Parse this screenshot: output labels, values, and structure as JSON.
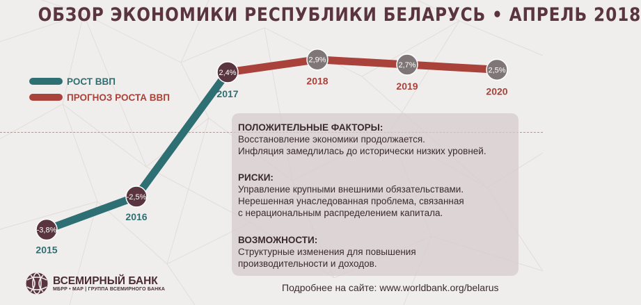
{
  "header": {
    "title": "ОБЗОР ЭКОНОМИКИ РЕСПУБЛИКИ БЕЛАРУСЬ • АПРЕЛЬ 2018"
  },
  "colors": {
    "actual": "#2e6f73",
    "forecast": "#a8423b",
    "point_fill": "#5a3540",
    "forecast_point_fill": "#7f7677",
    "title": "#5a3540"
  },
  "legend": {
    "items": [
      {
        "label": "РОСТ ВВП",
        "color": "#2e6f73"
      },
      {
        "label": "ПРОГНОЗ РОСТА ВВП",
        "color": "#a8423b"
      }
    ]
  },
  "chart_data": {
    "type": "line",
    "x": [
      "2015",
      "2016",
      "2017",
      "2018",
      "2019",
      "2020"
    ],
    "series": [
      {
        "name": "РОСТ ВВП",
        "values": [
          -3.8,
          -2.5,
          2.4,
          null,
          null,
          null
        ]
      },
      {
        "name": "ПРОГНОЗ РОСТА ВВП",
        "values": [
          null,
          null,
          2.4,
          2.9,
          2.7,
          2.5
        ]
      }
    ],
    "data_labels": [
      "-3,8%",
      "-2,5%",
      "2,4%",
      "2,9%",
      "2,7%",
      "2,5%"
    ],
    "legend_position": "top-left",
    "grid": false
  },
  "info": {
    "positive": {
      "heading": "ПОЛОЖИТЕЛЬНЫЕ ФАКТОРЫ:",
      "lines": [
        "Восстановление экономики продолжается.",
        "Инфляция замедлилась до исторически низких уровней."
      ]
    },
    "risks": {
      "heading": "РИСКИ:",
      "lines": [
        "Управление крупными внешними обязательствами.",
        "Нерешенная унаследованная проблема, связанная",
        "с нерациональным распределением капитала."
      ]
    },
    "opportunities": {
      "heading": "ВОЗМОЖНОСТИ:",
      "lines": [
        "Структурные изменения для повышения",
        "производительности и доходов."
      ]
    }
  },
  "footer": {
    "logo_main": "ВСЕМИРНЫЙ БАНК",
    "logo_sub": "МБРР • МАР | ГРУППА ВСЕМИРНОГО БАНКА",
    "url_text": "Подробнее на сайте: www.worldbank.org/belarus"
  }
}
